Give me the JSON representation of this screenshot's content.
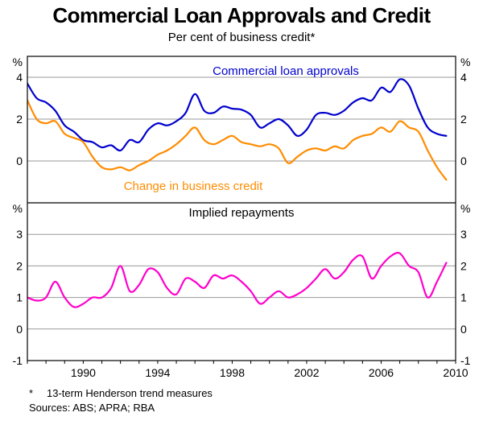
{
  "chart": {
    "title": "Commercial Loan Approvals and Credit",
    "subtitle": "Per cent of business credit*",
    "series_labels": {
      "approvals": "Commercial loan approvals",
      "credit": "Change in business credit",
      "repayments": "Implied repayments"
    },
    "unit_symbol": "%",
    "footnote_marker": "*",
    "footnote": "13-term Henderson trend measures",
    "sources": "Sources: ABS; APRA; RBA",
    "colors": {
      "approvals": "#0000cd",
      "credit": "#ff8c00",
      "repayments": "#ff00cc",
      "grid": "#999999",
      "frame": "#000000"
    }
  },
  "chart_data": {
    "type": "line",
    "title": "Commercial Loan Approvals and Credit",
    "subtitle": "Per cent of business credit*",
    "x_start": 1987,
    "x_step": 0.5,
    "x_range": [
      1987,
      2010
    ],
    "x_tick_labels": [
      1990,
      1994,
      1998,
      2002,
      2006,
      2010
    ],
    "panels": [
      {
        "label": "Top panel: loan approvals and business credit",
        "ylim": [
          -2,
          5
        ],
        "yticks": [
          0,
          2,
          4
        ],
        "series": [
          {
            "name": "Commercial loan approvals",
            "color": "#0000cd",
            "values": [
              3.7,
              3.0,
              2.8,
              2.4,
              1.7,
              1.4,
              1.0,
              0.9,
              0.65,
              0.75,
              0.5,
              1.0,
              0.9,
              1.5,
              1.8,
              1.7,
              1.9,
              2.3,
              3.2,
              2.4,
              2.3,
              2.6,
              2.5,
              2.45,
              2.2,
              1.6,
              1.8,
              2.0,
              1.7,
              1.2,
              1.5,
              2.2,
              2.3,
              2.2,
              2.4,
              2.8,
              3.0,
              2.9,
              3.5,
              3.3,
              3.9,
              3.6,
              2.5,
              1.6,
              1.3,
              1.2
            ]
          },
          {
            "name": "Change in business credit",
            "color": "#ff8c00",
            "values": [
              2.9,
              2.0,
              1.8,
              1.9,
              1.3,
              1.1,
              0.9,
              0.2,
              -0.3,
              -0.4,
              -0.3,
              -0.45,
              -0.2,
              0.0,
              0.3,
              0.5,
              0.8,
              1.2,
              1.6,
              1.0,
              0.8,
              1.0,
              1.2,
              0.9,
              0.8,
              0.7,
              0.8,
              0.6,
              -0.1,
              0.2,
              0.5,
              0.6,
              0.5,
              0.7,
              0.6,
              1.0,
              1.2,
              1.3,
              1.6,
              1.4,
              1.9,
              1.6,
              1.4,
              0.5,
              -0.3,
              -0.9
            ]
          }
        ]
      },
      {
        "label": "Bottom panel: implied repayments",
        "ylim": [
          -1,
          4
        ],
        "yticks": [
          -1,
          0,
          1,
          2,
          3
        ],
        "series": [
          {
            "name": "Implied repayments",
            "color": "#ff00cc",
            "values": [
              1.0,
              0.9,
              1.0,
              1.5,
              1.0,
              0.7,
              0.8,
              1.0,
              1.0,
              1.3,
              2.0,
              1.2,
              1.4,
              1.9,
              1.8,
              1.3,
              1.1,
              1.6,
              1.5,
              1.3,
              1.7,
              1.6,
              1.7,
              1.5,
              1.2,
              0.8,
              1.0,
              1.2,
              1.0,
              1.1,
              1.3,
              1.6,
              1.9,
              1.6,
              1.8,
              2.2,
              2.3,
              1.6,
              2.0,
              2.3,
              2.4,
              2.0,
              1.8,
              1.0,
              1.5,
              2.1
            ]
          }
        ]
      }
    ]
  }
}
